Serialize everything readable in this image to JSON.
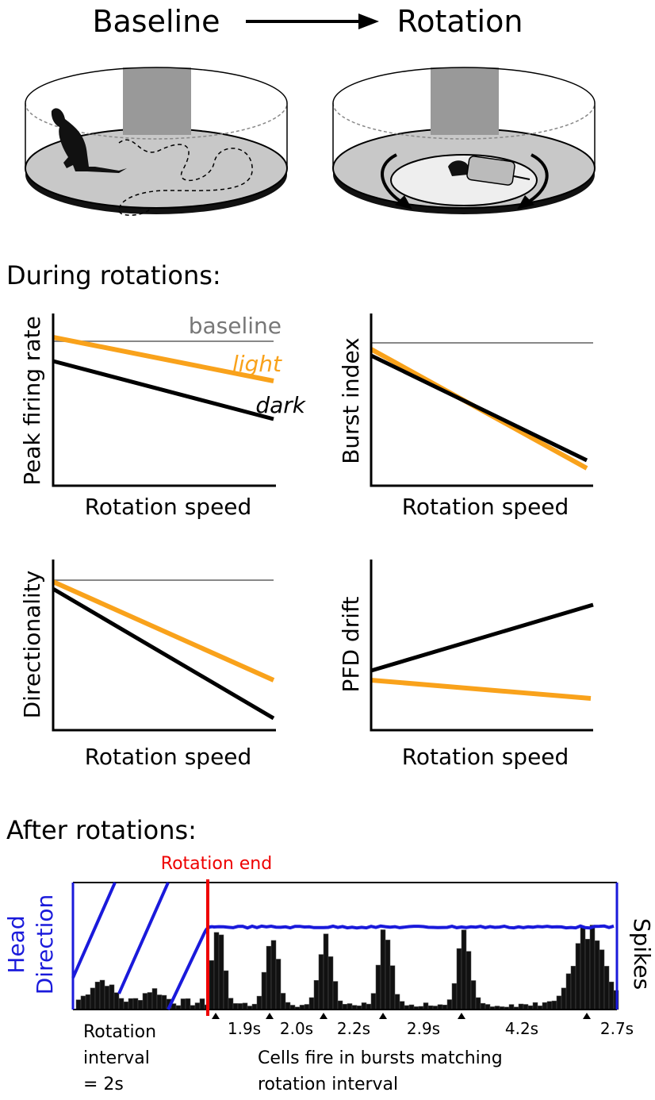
{
  "top": {
    "left": "Baseline",
    "right": "Rotation"
  },
  "during": {
    "heading": "During rotations:",
    "panels": [
      {
        "ylabel": "Peak firing rate",
        "xlabel": "Rotation speed",
        "baseline": "baseline",
        "light": "light",
        "dark": "dark"
      },
      {
        "ylabel": "Burst index",
        "xlabel": "Rotation speed"
      },
      {
        "ylabel": "Directionality",
        "xlabel": "Rotation speed"
      },
      {
        "ylabel": "PFD drift",
        "xlabel": "Rotation speed"
      }
    ]
  },
  "after": {
    "heading": "After rotations:",
    "rotation_end": "Rotation end",
    "left_axis": [
      "Head",
      "Direction"
    ],
    "right_axis": "Spikes",
    "intervals": [
      "1.9s",
      "2.0s",
      "2.2s",
      "2.9s",
      "4.2s",
      "2.7s"
    ],
    "left_note": [
      "Rotation",
      "interval",
      "= 2s"
    ],
    "bottom_note": [
      "Cells fire in bursts matching",
      "rotation interval"
    ]
  }
}
